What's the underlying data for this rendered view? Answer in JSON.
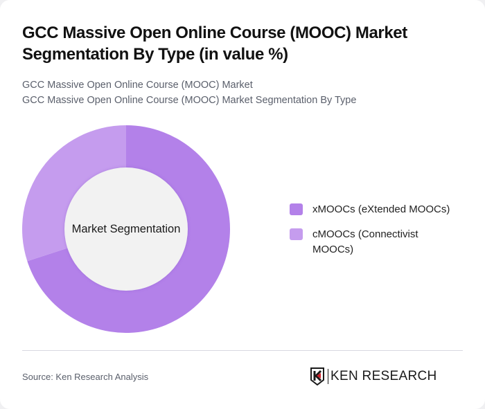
{
  "header": {
    "title": "GCC Massive Open Online Course (MOOC) Market Segmentation By Type (in value %)",
    "subtitle_line1": "GCC Massive Open Online Course (MOOC) Market",
    "subtitle_line2": "GCC Massive Open Online Course (MOOC) Market Segmentation By Type"
  },
  "chart": {
    "center_label": "Market Segmentation"
  },
  "legend": {
    "items": [
      {
        "label": "xMOOCs (eXtended MOOCs)",
        "color": "#b381e9"
      },
      {
        "label": "cMOOCs (Connectivist MOOCs)",
        "color": "#c59cee"
      }
    ]
  },
  "footer": {
    "source": "Source: Ken Research Analysis",
    "logo_text": "KEN RESEARCH",
    "logo_accent_color": "#d0202a"
  },
  "chart_data": {
    "type": "pie",
    "variant": "donut",
    "title": "GCC Massive Open Online Course (MOOC) Market Segmentation By Type (in value %)",
    "center_label": "Market Segmentation",
    "categories": [
      "xMOOCs (eXtended MOOCs)",
      "cMOOCs (Connectivist MOOCs)"
    ],
    "values": [
      70,
      30
    ],
    "colors": [
      "#b381e9",
      "#c59cee"
    ],
    "start_angle": "12 o'clock, clockwise",
    "legend_position": "right",
    "data_labels": false
  }
}
